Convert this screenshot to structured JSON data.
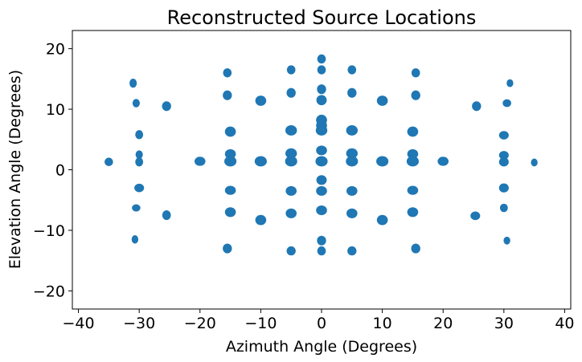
{
  "chart_data": {
    "type": "scatter",
    "title": "Reconstructed Source Locations",
    "xlabel": "Azimuth Angle (Degrees)",
    "ylabel": "Elevation Angle (Degrees)",
    "xlim": [
      -41,
      41
    ],
    "ylim": [
      -23,
      23
    ],
    "xticks": [
      -40,
      -30,
      -20,
      -10,
      0,
      10,
      20,
      30,
      40
    ],
    "yticks": [
      -20,
      -10,
      0,
      10,
      20
    ],
    "grid": false,
    "marker_color": "#1f77b4",
    "series": [
      {
        "points": [
          {
            "x": -35,
            "y": 1.3,
            "size": [
              0.7,
              0.7
            ]
          },
          {
            "x": -31,
            "y": 14.3,
            "size": [
              0.6,
              0.75
            ]
          },
          {
            "x": -30.5,
            "y": 11,
            "size": [
              0.6,
              0.7
            ]
          },
          {
            "x": -30,
            "y": 5.8,
            "size": [
              0.65,
              0.75
            ]
          },
          {
            "x": -30,
            "y": 2.5,
            "size": [
              0.6,
              0.7
            ]
          },
          {
            "x": -30,
            "y": 1.3,
            "size": [
              0.65,
              0.75
            ]
          },
          {
            "x": -30,
            "y": -3,
            "size": [
              0.8,
              0.7
            ]
          },
          {
            "x": -30.5,
            "y": -6.3,
            "size": [
              0.7,
              0.6
            ]
          },
          {
            "x": -30.7,
            "y": -11.5,
            "size": [
              0.55,
              0.7
            ]
          },
          {
            "x": -25.5,
            "y": 10.5,
            "size": [
              0.75,
              0.8
            ]
          },
          {
            "x": -25.5,
            "y": -7.5,
            "size": [
              0.7,
              0.8
            ]
          },
          {
            "x": -20,
            "y": 1.4,
            "size": [
              0.9,
              0.75
            ]
          },
          {
            "x": -15.5,
            "y": 16,
            "size": [
              0.7,
              0.75
            ]
          },
          {
            "x": -15.5,
            "y": 12.3,
            "size": [
              0.75,
              0.8
            ]
          },
          {
            "x": -15,
            "y": 6.3,
            "size": [
              0.9,
              0.85
            ]
          },
          {
            "x": -15,
            "y": 2.6,
            "size": [
              0.9,
              0.8
            ]
          },
          {
            "x": -15,
            "y": 1.4,
            "size": [
              1.0,
              0.85
            ]
          },
          {
            "x": -15,
            "y": -3.4,
            "size": [
              0.9,
              0.75
            ]
          },
          {
            "x": -15,
            "y": -7,
            "size": [
              0.9,
              0.8
            ]
          },
          {
            "x": -15.5,
            "y": -13,
            "size": [
              0.75,
              0.8
            ]
          },
          {
            "x": -10,
            "y": 11.4,
            "size": [
              0.9,
              0.85
            ]
          },
          {
            "x": -10,
            "y": 1.4,
            "size": [
              1.0,
              0.85
            ]
          },
          {
            "x": -10,
            "y": -8.3,
            "size": [
              0.9,
              0.85
            ]
          },
          {
            "x": -5,
            "y": 16.5,
            "size": [
              0.7,
              0.75
            ]
          },
          {
            "x": -5,
            "y": 12.7,
            "size": [
              0.75,
              0.8
            ]
          },
          {
            "x": -5,
            "y": 6.5,
            "size": [
              0.95,
              0.85
            ]
          },
          {
            "x": -5,
            "y": 2.7,
            "size": [
              0.95,
              0.85
            ]
          },
          {
            "x": -5,
            "y": 1.4,
            "size": [
              1.0,
              0.85
            ]
          },
          {
            "x": -5,
            "y": -3.5,
            "size": [
              0.9,
              0.8
            ]
          },
          {
            "x": -5,
            "y": -7.2,
            "size": [
              0.9,
              0.8
            ]
          },
          {
            "x": -5,
            "y": -13.4,
            "size": [
              0.75,
              0.75
            ]
          },
          {
            "x": 0,
            "y": 18.3,
            "size": [
              0.7,
              0.75
            ]
          },
          {
            "x": 0,
            "y": 16.5,
            "size": [
              0.7,
              0.75
            ]
          },
          {
            "x": 0,
            "y": 13.3,
            "size": [
              0.75,
              0.8
            ]
          },
          {
            "x": 0,
            "y": 11.5,
            "size": [
              0.85,
              0.85
            ]
          },
          {
            "x": 0,
            "y": 8.2,
            "size": [
              0.9,
              0.9
            ]
          },
          {
            "x": 0,
            "y": 7.3,
            "size": [
              0.9,
              0.85
            ]
          },
          {
            "x": 0,
            "y": 6.5,
            "size": [
              0.95,
              0.85
            ]
          },
          {
            "x": 0,
            "y": 3.2,
            "size": [
              0.9,
              0.8
            ]
          },
          {
            "x": 0,
            "y": 1.4,
            "size": [
              1.0,
              0.85
            ]
          },
          {
            "x": 0,
            "y": -1.7,
            "size": [
              0.85,
              0.8
            ]
          },
          {
            "x": 0,
            "y": -3.5,
            "size": [
              0.9,
              0.8
            ]
          },
          {
            "x": 0,
            "y": -6.7,
            "size": [
              0.9,
              0.8
            ]
          },
          {
            "x": 0,
            "y": -11.7,
            "size": [
              0.75,
              0.8
            ]
          },
          {
            "x": 0,
            "y": -13.4,
            "size": [
              0.7,
              0.75
            ]
          },
          {
            "x": 5,
            "y": 16.5,
            "size": [
              0.7,
              0.75
            ]
          },
          {
            "x": 5,
            "y": 12.7,
            "size": [
              0.75,
              0.8
            ]
          },
          {
            "x": 5,
            "y": 6.5,
            "size": [
              0.95,
              0.85
            ]
          },
          {
            "x": 5,
            "y": 2.7,
            "size": [
              0.95,
              0.85
            ]
          },
          {
            "x": 5,
            "y": 1.4,
            "size": [
              1.0,
              0.85
            ]
          },
          {
            "x": 5,
            "y": -3.5,
            "size": [
              0.9,
              0.8
            ]
          },
          {
            "x": 5,
            "y": -7.2,
            "size": [
              0.9,
              0.8
            ]
          },
          {
            "x": 5,
            "y": -13.4,
            "size": [
              0.75,
              0.75
            ]
          },
          {
            "x": 10,
            "y": 11.4,
            "size": [
              0.9,
              0.85
            ]
          },
          {
            "x": 10,
            "y": 1.4,
            "size": [
              1.0,
              0.85
            ]
          },
          {
            "x": 10,
            "y": -8.3,
            "size": [
              0.9,
              0.85
            ]
          },
          {
            "x": 15.5,
            "y": 16,
            "size": [
              0.7,
              0.75
            ]
          },
          {
            "x": 15.5,
            "y": 12.3,
            "size": [
              0.75,
              0.8
            ]
          },
          {
            "x": 15,
            "y": 6.3,
            "size": [
              0.9,
              0.85
            ]
          },
          {
            "x": 15,
            "y": 2.6,
            "size": [
              0.9,
              0.8
            ]
          },
          {
            "x": 15,
            "y": 1.4,
            "size": [
              1.0,
              0.85
            ]
          },
          {
            "x": 15,
            "y": -3.4,
            "size": [
              0.9,
              0.75
            ]
          },
          {
            "x": 15,
            "y": -7,
            "size": [
              0.9,
              0.8
            ]
          },
          {
            "x": 15.5,
            "y": -13,
            "size": [
              0.75,
              0.8
            ]
          },
          {
            "x": 20,
            "y": 1.4,
            "size": [
              0.9,
              0.75
            ]
          },
          {
            "x": 25.5,
            "y": 10.5,
            "size": [
              0.75,
              0.8
            ]
          },
          {
            "x": 25.3,
            "y": -7.6,
            "size": [
              0.8,
              0.7
            ]
          },
          {
            "x": 31,
            "y": 14.3,
            "size": [
              0.55,
              0.65
            ]
          },
          {
            "x": 30.5,
            "y": 11,
            "size": [
              0.7,
              0.65
            ]
          },
          {
            "x": 30,
            "y": 5.7,
            "size": [
              0.8,
              0.7
            ]
          },
          {
            "x": 30,
            "y": 2.4,
            "size": [
              0.8,
              0.7
            ]
          },
          {
            "x": 30,
            "y": 1.3,
            "size": [
              0.8,
              0.75
            ]
          },
          {
            "x": 30,
            "y": -3,
            "size": [
              0.8,
              0.75
            ]
          },
          {
            "x": 30,
            "y": -6.3,
            "size": [
              0.65,
              0.7
            ]
          },
          {
            "x": 30.5,
            "y": -11.7,
            "size": [
              0.55,
              0.65
            ]
          },
          {
            "x": 35,
            "y": 1.2,
            "size": [
              0.55,
              0.65
            ]
          }
        ]
      }
    ]
  }
}
